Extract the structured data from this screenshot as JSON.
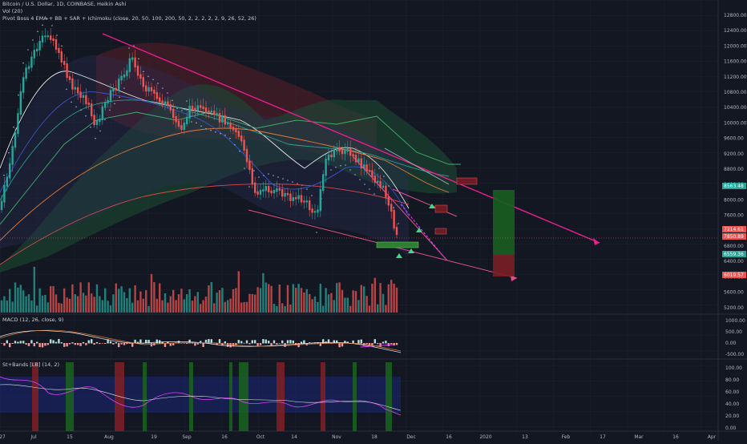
{
  "header": {
    "symbol_line": "Bitcoin / U.S. Dollar, 1D, COINBASE, Heikin Ashi",
    "volume_label": "Vol (20)",
    "indicator_label": "Pivot Boss 4 EMA + BB + SAR + Ichimoku (close, 20, 50, 100, 200, 50, 2, 2, 2, 2, 2, 9, 26, 52, 26)"
  },
  "macd": {
    "label": "MACD (12, 26, close, 9)",
    "axis": [
      "1000.00",
      "500.00",
      "0.00",
      "-500.00"
    ]
  },
  "stoch": {
    "label": "St+Bands [LB] (14, 2)",
    "axis": [
      "100.00",
      "80.00",
      "60.00",
      "40.00",
      "20.00",
      "0.00"
    ]
  },
  "price_axis": [
    "12800.00",
    "12400.00",
    "12000.00",
    "11600.00",
    "11200.00",
    "10800.00",
    "10400.00",
    "10000.00",
    "9600.00",
    "9200.00",
    "8800.00",
    "8400.00",
    "8000.00",
    "7600.00",
    "7200.00",
    "6800.00",
    "6400.00",
    "6000.00",
    "5600.00",
    "5200.00"
  ],
  "price_tags": [
    {
      "text": "8563.48",
      "color": "#26a69a"
    },
    {
      "text": "7214.61",
      "color": "#ef5350"
    },
    {
      "text": "7850.89",
      "color": "#ef5350"
    },
    {
      "text": "6559.36",
      "color": "#26a69a"
    },
    {
      "text": "6019.57",
      "color": "#ef5350"
    }
  ],
  "time_axis": [
    "27",
    "Jul",
    "15",
    "Aug",
    "19",
    "Sep",
    "16",
    "Oct",
    "14",
    "Nov",
    "18",
    "Dec",
    "16",
    "2020",
    "13",
    "Feb",
    "17",
    "Mar",
    "16",
    "Apr"
  ],
  "colors": {
    "background": "#131722",
    "bull": "#26a69a",
    "bear": "#ef5350",
    "trendline": "#e91e8c",
    "grid": "#1f2433"
  }
}
